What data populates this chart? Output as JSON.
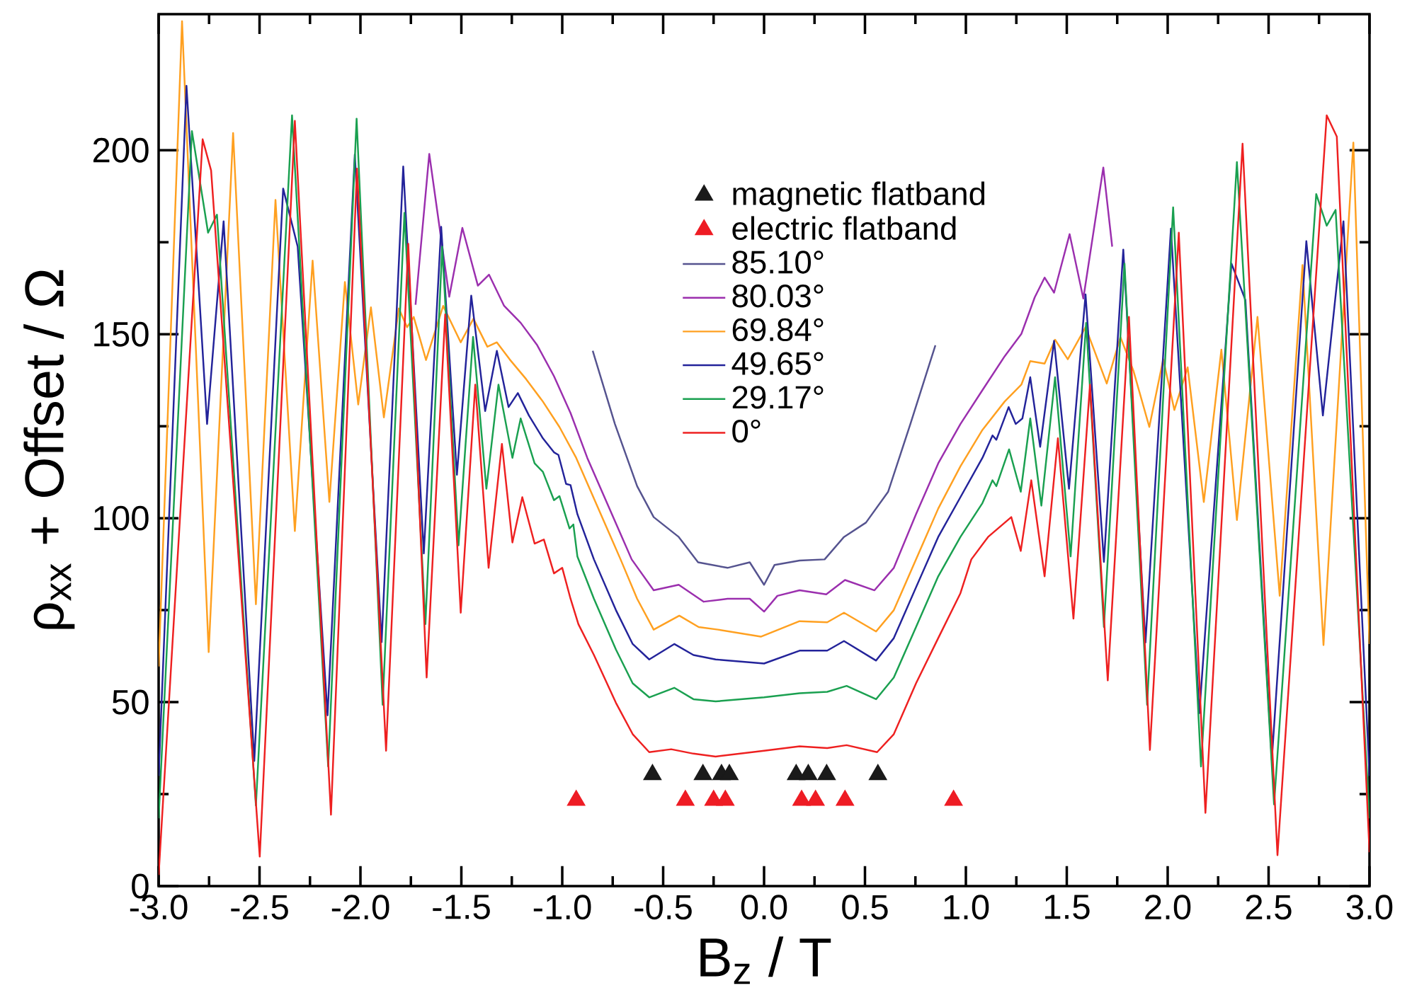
{
  "chart_data": {
    "type": "line",
    "xlabel": "B$_{z}$ / T",
    "ylabel": "ρ$_{xx}$ + Offset / Ω",
    "xlim": [
      -3,
      3
    ],
    "ylim": [
      0,
      237
    ],
    "xticks": [
      {
        "value": -3,
        "label": "-3.0"
      },
      {
        "value": -2.75,
        "label": null
      },
      {
        "value": -2.5,
        "label": "-2.5"
      },
      {
        "value": -2.25,
        "label": null
      },
      {
        "value": -2,
        "label": "-2.0"
      },
      {
        "value": -1.75,
        "label": null
      },
      {
        "value": -1.5,
        "label": "-1.5"
      },
      {
        "value": -1.25,
        "label": null
      },
      {
        "value": -1,
        "label": "-1.0"
      },
      {
        "value": -0.75,
        "label": null
      },
      {
        "value": -0.5,
        "label": "-0.5"
      },
      {
        "value": -0.25,
        "label": null
      },
      {
        "value": 0,
        "label": "0.0"
      },
      {
        "value": 0.25,
        "label": null
      },
      {
        "value": 0.5,
        "label": "0.5"
      },
      {
        "value": 0.75,
        "label": null
      },
      {
        "value": 1,
        "label": "1.0"
      },
      {
        "value": 1.25,
        "label": null
      },
      {
        "value": 1.5,
        "label": "1.5"
      },
      {
        "value": 1.75,
        "label": null
      },
      {
        "value": 2,
        "label": "2.0"
      },
      {
        "value": 2.25,
        "label": null
      },
      {
        "value": 2.5,
        "label": "2.5"
      },
      {
        "value": 2.75,
        "label": null
      },
      {
        "value": 3,
        "label": "3.0"
      }
    ],
    "yticks": [
      0,
      {
        "value": 25,
        "label": null
      },
      50,
      {
        "value": 75,
        "label": null
      },
      100,
      {
        "value": 125,
        "label": null
      },
      150,
      {
        "value": 175,
        "label": null
      },
      200
    ],
    "legend": "top",
    "series": [
      {
        "name": "magnetic flatband",
        "type": "scatter",
        "marker": "triangle",
        "color": "#1a1a1a",
        "x": [
          -0.553,
          -0.303,
          -0.211,
          -0.172,
          0.159,
          0.219,
          0.31,
          0.564
        ],
        "values": [
          30.3,
          30.3,
          30.3,
          30.3,
          30.3,
          30.3,
          30.3,
          30.3
        ]
      },
      {
        "name": "electric flatband",
        "type": "scatter",
        "marker": "triangle",
        "color": "#ee1c24",
        "x": [
          -0.931,
          -0.39,
          -0.25,
          -0.192,
          0.186,
          0.255,
          0.401,
          0.939
        ],
        "values": [
          23.3,
          23.3,
          23.3,
          23.3,
          23.3,
          23.3,
          23.3,
          23.3
        ]
      },
      {
        "name": "85.10°",
        "color": "#55538f",
        "x": [
          -0.849,
          -0.739,
          -0.629,
          -0.547,
          -0.423,
          -0.327,
          -0.181,
          -0.071,
          0.0,
          0.052,
          0.176,
          0.3,
          0.396,
          0.505,
          0.615,
          0.725,
          0.849
        ],
        "values": [
          145.5,
          125.6,
          108.7,
          100.3,
          94.9,
          88,
          86.5,
          88,
          81.9,
          87.3,
          88.5,
          88.8,
          94.9,
          98.8,
          107.2,
          125.6,
          147
        ]
      },
      {
        "name": "80.03°",
        "color": "#9b2fae",
        "x": [
          -1.727,
          -1.659,
          -1.56,
          -1.495,
          -1.418,
          -1.363,
          -1.288,
          -1.206,
          -1.124,
          -1.041,
          -0.959,
          -0.876,
          -0.766,
          -0.656,
          -0.547,
          -0.423,
          -0.299,
          -0.181,
          -0.071,
          0.0,
          0.066,
          0.176,
          0.308,
          0.401,
          0.547,
          0.643,
          0.753,
          0.863,
          0.973,
          1.082,
          1.192,
          1.275,
          1.341,
          1.39,
          1.437,
          1.514,
          1.582,
          1.681,
          1.725
        ],
        "values": [
          158,
          199,
          160.2,
          178.9,
          163.2,
          166.2,
          157.7,
          153.1,
          147,
          138.6,
          128.6,
          116.4,
          102.6,
          88.8,
          80.4,
          81.9,
          77.3,
          78.1,
          78.1,
          74.6,
          78.9,
          80.4,
          79.3,
          83.2,
          80.4,
          86.5,
          101.1,
          114.9,
          125.6,
          134.8,
          144,
          150.1,
          160,
          165.4,
          161.3,
          177.2,
          159.7,
          195.3,
          173.8
        ]
      },
      {
        "name": "69.84°",
        "color": "#ffa020",
        "x": [
          -3.0,
          -2.884,
          -2.752,
          -2.631,
          -2.518,
          -2.421,
          -2.325,
          -2.237,
          -2.154,
          -2.077,
          -2.011,
          -1.948,
          -1.884,
          -1.81,
          -1.769,
          -1.736,
          -1.675,
          -1.59,
          -1.503,
          -1.44,
          -1.371,
          -1.324,
          -1.261,
          -1.179,
          -1.096,
          -1.014,
          -0.931,
          -0.821,
          -0.711,
          -0.629,
          -0.547,
          -0.42,
          -0.324,
          -0.228,
          -0.016,
          0.176,
          0.313,
          0.396,
          0.555,
          0.643,
          0.753,
          0.863,
          0.973,
          1.082,
          1.192,
          1.275,
          1.319,
          1.39,
          1.442,
          1.505,
          1.593,
          1.698,
          1.766,
          1.83,
          1.909,
          1.978,
          2.033,
          2.099,
          2.179,
          2.266,
          2.343,
          2.445,
          2.555,
          2.668,
          2.772,
          2.92,
          3.0
        ],
        "values": [
          59.7,
          235.1,
          63.6,
          204.7,
          76.6,
          186.5,
          96.5,
          170,
          104.4,
          164.2,
          130.9,
          157.3,
          127.4,
          157,
          151.9,
          154.7,
          143,
          157.7,
          147.8,
          154.2,
          146.6,
          147.8,
          143.2,
          137.8,
          131.7,
          124.8,
          116.4,
          102.6,
          88.8,
          78.1,
          69.7,
          73.5,
          70.4,
          69.7,
          67.8,
          72,
          71.7,
          74.3,
          69.2,
          75,
          88.8,
          102.6,
          114.1,
          124,
          131.7,
          136.3,
          142.7,
          142,
          148.5,
          143.2,
          151.9,
          136.6,
          149.2,
          140.1,
          124.8,
          143.2,
          129.4,
          141,
          104.4,
          145.8,
          99.5,
          154.7,
          78.9,
          168.8,
          65.5,
          202.1,
          65.8
        ]
      },
      {
        "name": "49.65°",
        "color": "#23239a",
        "x": [
          -3.0,
          -2.862,
          -2.76,
          -2.678,
          -2.526,
          -2.383,
          -2.311,
          -2.163,
          -2.028,
          -1.895,
          -1.788,
          -1.686,
          -1.6,
          -1.522,
          -1.451,
          -1.382,
          -1.324,
          -1.266,
          -1.22,
          -1.165,
          -1.096,
          -1.041,
          -1.019,
          -0.981,
          -0.959,
          -0.925,
          -0.843,
          -0.734,
          -0.651,
          -0.569,
          -0.445,
          -0.35,
          -0.24,
          0.0,
          0.176,
          0.313,
          0.396,
          0.555,
          0.643,
          0.753,
          0.863,
          0.973,
          1.082,
          1.132,
          1.151,
          1.212,
          1.247,
          1.28,
          1.319,
          1.368,
          1.437,
          1.511,
          1.593,
          1.684,
          1.78,
          1.89,
          2.016,
          2.157,
          2.316,
          2.385,
          2.516,
          2.687,
          2.769,
          2.871,
          3.0
        ],
        "values": [
          29.9,
          217.5,
          125.6,
          180.7,
          34,
          189.6,
          173.8,
          46.4,
          198.8,
          66.3,
          195.6,
          90.4,
          179.2,
          111.8,
          160.5,
          129.1,
          145.5,
          130.2,
          134,
          127.9,
          121.7,
          117.9,
          117.2,
          109.3,
          109,
          101.1,
          88.8,
          75,
          65.8,
          61.6,
          65.8,
          62.8,
          61.6,
          60.5,
          64,
          64,
          66.6,
          61.3,
          67.4,
          81.2,
          94.9,
          105.7,
          116.4,
          122.5,
          121.3,
          130.2,
          125.6,
          127.1,
          138.3,
          119.4,
          148.2,
          108,
          160.8,
          88.1,
          173,
          66.2,
          178.7,
          47,
          169.2,
          159.3,
          34.3,
          175.3,
          127.9,
          180.7,
          29.9
        ]
      },
      {
        "name": "29.17°",
        "color": "#1aa050",
        "x": [
          -3.0,
          -2.835,
          -2.755,
          -2.711,
          -2.518,
          -2.339,
          -2.16,
          -2.019,
          -1.89,
          -1.782,
          -1.678,
          -1.595,
          -1.514,
          -1.442,
          -1.376,
          -1.316,
          -1.247,
          -1.206,
          -1.137,
          -1.096,
          -1.041,
          -1.014,
          -0.964,
          -0.945,
          -0.925,
          -0.843,
          -0.734,
          -0.651,
          -0.569,
          -0.445,
          -0.35,
          -0.24,
          0.0,
          0.176,
          0.313,
          0.409,
          0.555,
          0.643,
          0.753,
          0.863,
          0.973,
          1.082,
          1.132,
          1.151,
          1.214,
          1.272,
          1.319,
          1.374,
          1.442,
          1.519,
          1.596,
          1.684,
          1.786,
          1.898,
          2.027,
          2.165,
          2.343,
          2.527,
          2.736,
          2.788,
          2.832,
          3.0
        ],
        "values": [
          18.4,
          205.2,
          177.6,
          182.5,
          21.9,
          209.5,
          32.5,
          208.6,
          49.3,
          183,
          71.2,
          173.8,
          92.6,
          149.3,
          108,
          136.3,
          116.4,
          127.1,
          114.9,
          112.6,
          104.9,
          106,
          97.2,
          98.3,
          89.6,
          78.1,
          64.3,
          55.1,
          51.3,
          53.9,
          50.8,
          50.2,
          51.3,
          52.4,
          52.8,
          54.4,
          50.8,
          56.7,
          70.4,
          84.2,
          94.9,
          104.1,
          110.3,
          108.7,
          118.7,
          107.2,
          127.1,
          103.4,
          138.3,
          89.6,
          153.1,
          70.4,
          169.2,
          49.3,
          184.5,
          32.5,
          196.8,
          22.2,
          188.1,
          179.5,
          183.8,
          18.4
        ]
      },
      {
        "name": "0°",
        "color": "#ee2020",
        "x": [
          -3.0,
          -2.782,
          -2.74,
          -2.499,
          -2.325,
          -2.146,
          -2.017,
          -1.873,
          -1.763,
          -1.672,
          -1.58,
          -1.503,
          -1.431,
          -1.365,
          -1.299,
          -1.247,
          -1.198,
          -1.137,
          -1.091,
          -1.041,
          -1.0,
          -0.959,
          -0.92,
          -0.843,
          -0.734,
          -0.651,
          -0.569,
          -0.46,
          -0.35,
          -0.24,
          0.0,
          0.176,
          0.313,
          0.409,
          0.56,
          0.643,
          0.753,
          0.863,
          0.973,
          1.027,
          1.11,
          1.225,
          1.272,
          1.324,
          1.39,
          1.456,
          1.533,
          1.615,
          1.703,
          1.808,
          1.912,
          2.055,
          2.187,
          2.371,
          2.544,
          2.788,
          2.838,
          3.0
        ],
        "values": [
          3,
          203,
          194.5,
          8,
          208,
          19.4,
          195,
          36.8,
          174.6,
          56.7,
          155.4,
          74.3,
          136.3,
          86.5,
          120.2,
          93.4,
          105.7,
          93.1,
          94.2,
          85,
          86.5,
          78.1,
          71.2,
          62.8,
          49.8,
          41.3,
          36.4,
          37.2,
          36,
          35.2,
          36.8,
          38,
          37.5,
          38.3,
          36.4,
          41.3,
          55.1,
          67.4,
          79.6,
          88.8,
          94.9,
          100.3,
          91.1,
          110.3,
          84.2,
          121.7,
          72.7,
          136.3,
          55.9,
          154.7,
          37,
          177.6,
          19.9,
          201.8,
          8.4,
          209.5,
          203.7,
          9.2
        ]
      }
    ]
  }
}
